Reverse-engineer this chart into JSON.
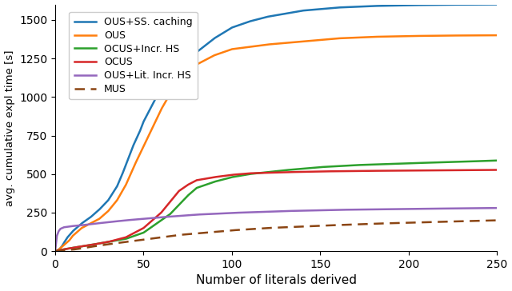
{
  "title": "",
  "xlabel": "Number of literals derived",
  "ylabel": "avg. cumulative expl time [s]",
  "xlim": [
    0,
    250
  ],
  "ylim": [
    0,
    1600
  ],
  "yticks": [
    0,
    250,
    500,
    750,
    1000,
    1250,
    1500
  ],
  "xticks": [
    0,
    50,
    100,
    150,
    200,
    250
  ],
  "legend": [
    "OUS+SS. caching",
    "OUS",
    "OCUS+Incr. HS",
    "OCUS",
    "OUS+Lit. Incr. HS",
    "MUS"
  ],
  "colors": {
    "OUS+SS. caching": "#1f77b4",
    "OUS": "#ff7f0e",
    "OCUS+Incr. HS": "#2ca02c",
    "OCUS": "#d62728",
    "OUS+Lit. Incr. HS": "#9467bd",
    "MUS": "#8B4513"
  },
  "figsize": [
    6.4,
    3.64
  ],
  "dpi": 100,
  "ous_ss_x": [
    0,
    1,
    2,
    3,
    4,
    5,
    7,
    10,
    15,
    20,
    25,
    30,
    35,
    38,
    40,
    42,
    44,
    46,
    48,
    50,
    55,
    60,
    65,
    70,
    75,
    80,
    90,
    100,
    110,
    120,
    130,
    140,
    150,
    160,
    170,
    180,
    200,
    220,
    250
  ],
  "ous_ss_y": [
    0,
    5,
    10,
    20,
    35,
    55,
    90,
    130,
    180,
    220,
    270,
    330,
    420,
    500,
    560,
    620,
    680,
    730,
    780,
    840,
    950,
    1060,
    1130,
    1180,
    1230,
    1290,
    1380,
    1450,
    1490,
    1520,
    1540,
    1560,
    1570,
    1580,
    1585,
    1590,
    1595,
    1598,
    1600
  ],
  "ous_x": [
    0,
    1,
    2,
    3,
    5,
    8,
    10,
    15,
    20,
    25,
    30,
    35,
    40,
    45,
    50,
    55,
    60,
    65,
    70,
    75,
    80,
    90,
    100,
    120,
    140,
    160,
    180,
    200,
    220,
    250
  ],
  "ous_y": [
    0,
    5,
    10,
    20,
    40,
    70,
    100,
    150,
    180,
    210,
    260,
    330,
    430,
    560,
    680,
    800,
    920,
    1020,
    1100,
    1160,
    1210,
    1270,
    1310,
    1340,
    1360,
    1380,
    1390,
    1395,
    1398,
    1400
  ],
  "ocus_incr_x": [
    0,
    1,
    2,
    3,
    5,
    8,
    10,
    20,
    30,
    40,
    50,
    60,
    65,
    70,
    75,
    80,
    90,
    100,
    110,
    130,
    150,
    170,
    200,
    230,
    250
  ],
  "ocus_incr_y": [
    0,
    2,
    4,
    7,
    12,
    18,
    22,
    40,
    60,
    80,
    120,
    200,
    240,
    300,
    360,
    410,
    450,
    480,
    500,
    525,
    545,
    558,
    570,
    580,
    588
  ],
  "ocus_x": [
    0,
    1,
    2,
    3,
    5,
    8,
    10,
    20,
    30,
    40,
    50,
    60,
    65,
    70,
    75,
    80,
    90,
    100,
    110,
    130,
    150,
    170,
    200,
    230,
    250
  ],
  "ocus_y": [
    0,
    2,
    4,
    7,
    12,
    18,
    22,
    40,
    60,
    90,
    150,
    250,
    320,
    390,
    430,
    460,
    480,
    495,
    505,
    512,
    517,
    520,
    523,
    525,
    527
  ],
  "ous_lit_x": [
    0,
    1,
    2,
    3,
    5,
    8,
    10,
    15,
    20,
    30,
    40,
    50,
    60,
    70,
    80,
    100,
    130,
    160,
    200,
    250
  ],
  "ous_lit_y": [
    0,
    100,
    130,
    145,
    155,
    160,
    163,
    168,
    175,
    188,
    200,
    210,
    220,
    228,
    237,
    248,
    260,
    268,
    274,
    280
  ],
  "mus_x": [
    0,
    2,
    5,
    10,
    15,
    20,
    30,
    40,
    50,
    60,
    70,
    80,
    100,
    120,
    150,
    180,
    210,
    250
  ],
  "mus_y": [
    0,
    2,
    5,
    10,
    18,
    28,
    45,
    60,
    75,
    90,
    105,
    115,
    135,
    150,
    165,
    178,
    188,
    200
  ]
}
